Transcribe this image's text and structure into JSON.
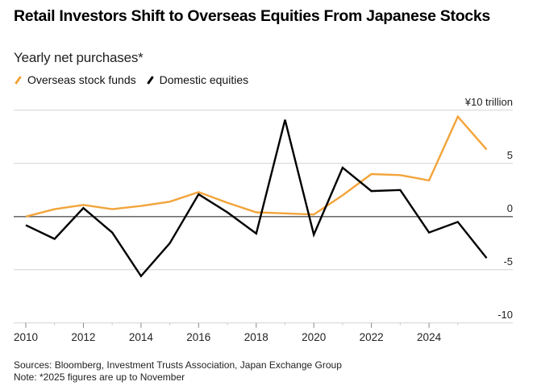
{
  "header": {
    "title": "Retail Investors Shift to Overseas Equities From Japanese Stocks",
    "subtitle": "Yearly net purchases*"
  },
  "legend": [
    {
      "label": "Overseas stock funds",
      "color": "#f2a43a"
    },
    {
      "label": "Domestic equities",
      "color": "#000000"
    }
  ],
  "footer": {
    "sources": "Sources: Bloomberg, Investment Trusts Association, Japan Exchange Group",
    "note": "Note: *2025 figures are up to November"
  },
  "chart_data": {
    "type": "line",
    "title": "Retail Investors Shift to Overseas Equities From Japanese Stocks",
    "subtitle": "Yearly net purchases*",
    "xlabel": "",
    "ylabel": "¥10 trillion",
    "x": [
      2010,
      2011,
      2012,
      2013,
      2014,
      2015,
      2016,
      2017,
      2018,
      2019,
      2020,
      2021,
      2022,
      2023,
      2024,
      2025,
      2026
    ],
    "xlim": [
      2010,
      2027.3
    ],
    "xticks": [
      2010,
      2012,
      2014,
      2016,
      2018,
      2020,
      2022,
      2024
    ],
    "xtick_labels": [
      "2010",
      "2012",
      "2014",
      "2016",
      "2018",
      "2020",
      "2022",
      "2024"
    ],
    "minor_xticks": [
      2011,
      2013,
      2015,
      2017,
      2019,
      2021,
      2023,
      2025
    ],
    "ylim": [
      -10,
      10
    ],
    "yticks": [
      10,
      5,
      0,
      -5,
      -10
    ],
    "ytick_labels": [
      "¥10 trillion",
      "5",
      "0",
      "-5",
      "-10"
    ],
    "grid": true,
    "legend_position": "top-left",
    "series": [
      {
        "name": "Overseas stock funds",
        "color": "#f2a43a",
        "values": [
          0.0,
          0.7,
          1.1,
          0.7,
          1.0,
          1.4,
          2.3,
          1.3,
          0.4,
          0.3,
          0.2,
          2.0,
          4.0,
          3.9,
          3.4,
          9.4,
          6.3
        ]
      },
      {
        "name": "Domestic equities",
        "color": "#000000",
        "values": [
          -0.8,
          -2.1,
          0.8,
          -1.5,
          -5.6,
          -2.5,
          2.1,
          0.4,
          -1.6,
          9.1,
          -1.7,
          4.6,
          2.4,
          2.5,
          -1.5,
          -0.5,
          -3.9
        ]
      }
    ],
    "notes": [
      "Sources: Bloomberg, Investment Trusts Association, Japan Exchange Group",
      "Note: *2025 figures are up to November"
    ]
  }
}
